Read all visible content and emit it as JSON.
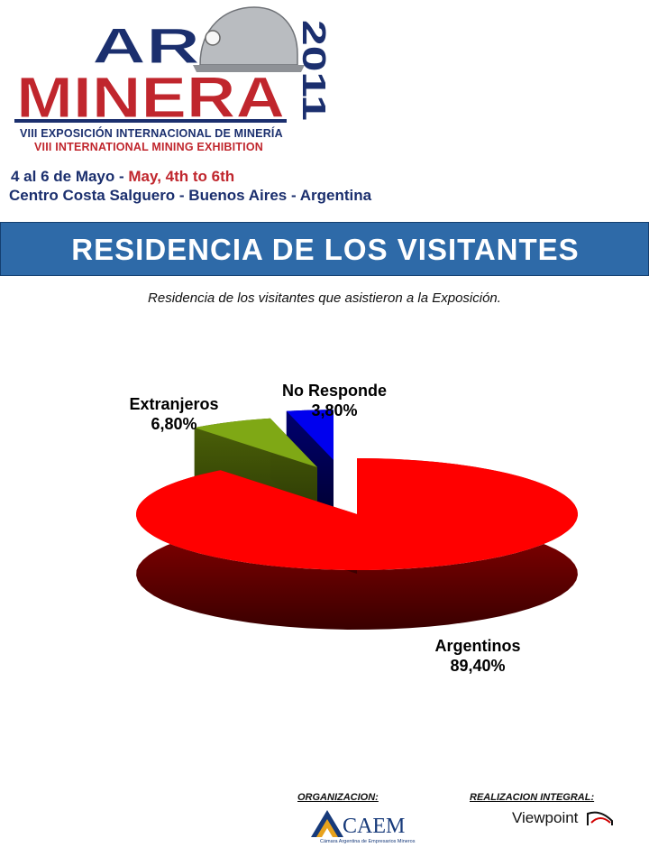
{
  "header": {
    "logo_top": "AR",
    "logo_main": "MINERA",
    "logo_year": "2011",
    "exhibition_es": "VIII EXPOSICIÓN INTERNACIONAL DE MINERÍA",
    "exhibition_en": "VIII INTERNATIONAL MINING EXHIBITION",
    "dates_es": "4 al 6 de Mayo - ",
    "dates_en": "May, 4th to 6th",
    "venue": "Centro Costa Salguero - Buenos Aires - Argentina",
    "colors": {
      "blue": "#1b2f6e",
      "red": "#c0262d"
    }
  },
  "banner": {
    "title": "RESIDENCIA DE LOS VISITANTES",
    "color": "#2e6aa8"
  },
  "caption": "Residencia de los visitantes que asistieron a la Exposición.",
  "chart_data": {
    "type": "pie",
    "title": "",
    "slices": [
      {
        "label": "Argentinos",
        "value": 89.4,
        "display": "89,40%",
        "color": "#ff0000"
      },
      {
        "label": "Extranjeros",
        "value": 6.8,
        "display": "6,80%",
        "color": "#7fa815"
      },
      {
        "label": "No Responde",
        "value": 3.8,
        "display": "3,80%",
        "color": "#0000ee"
      }
    ],
    "three_d": true,
    "exploded": [
      "Extranjeros",
      "No Responde"
    ],
    "legend": "none"
  },
  "footer": {
    "org_label": "ORGANIZACION:",
    "org_name": "CAEM",
    "org_subtitle": "Cámara Argentina de Empresarios Mineros",
    "prod_label": "REALIZACION INTEGRAL:",
    "prod_name": "Viewpoint"
  }
}
